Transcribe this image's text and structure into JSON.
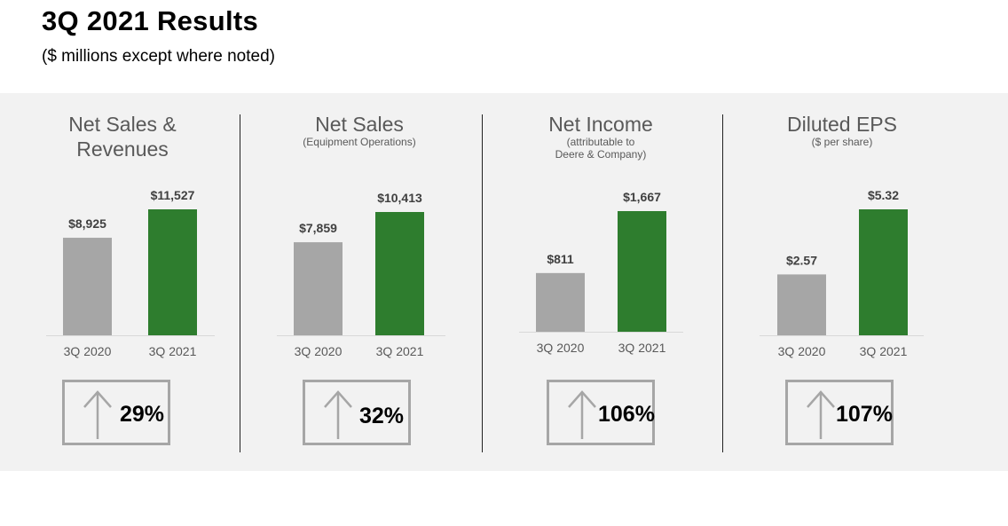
{
  "header": {
    "title": "3Q 2021 Results",
    "subtitle": "($ millions except where noted)"
  },
  "colors": {
    "prior": "#a6a6a6",
    "current": "#2e7d2e",
    "panel": "#f2f2f2"
  },
  "icons": {
    "change": "up-arrow-icon"
  },
  "chart_data": [
    {
      "type": "bar",
      "title": "Net Sales & Revenues",
      "subtitle": "",
      "categories": [
        "3Q 2020",
        "3Q 2021"
      ],
      "values": [
        8925,
        11527
      ],
      "labels": [
        "$8,925",
        "$11,527"
      ],
      "change": "29%"
    },
    {
      "type": "bar",
      "title": "Net Sales",
      "subtitle": "(Equipment Operations)",
      "categories": [
        "3Q 2020",
        "3Q 2021"
      ],
      "values": [
        7859,
        10413
      ],
      "labels": [
        "$7,859",
        "$10,413"
      ],
      "change": "32%"
    },
    {
      "type": "bar",
      "title": "Net Income",
      "subtitle": "(attributable to Deere & Company)",
      "categories": [
        "3Q 2020",
        "3Q 2021"
      ],
      "values": [
        811,
        1667
      ],
      "labels": [
        "$811",
        "$1,667"
      ],
      "change": "106%"
    },
    {
      "type": "bar",
      "title": "Diluted EPS",
      "subtitle": "($ per share)",
      "categories": [
        "3Q 2020",
        "3Q 2021"
      ],
      "values": [
        2.57,
        5.32
      ],
      "labels": [
        "$2.57",
        "$5.32"
      ],
      "change": "107%"
    }
  ]
}
